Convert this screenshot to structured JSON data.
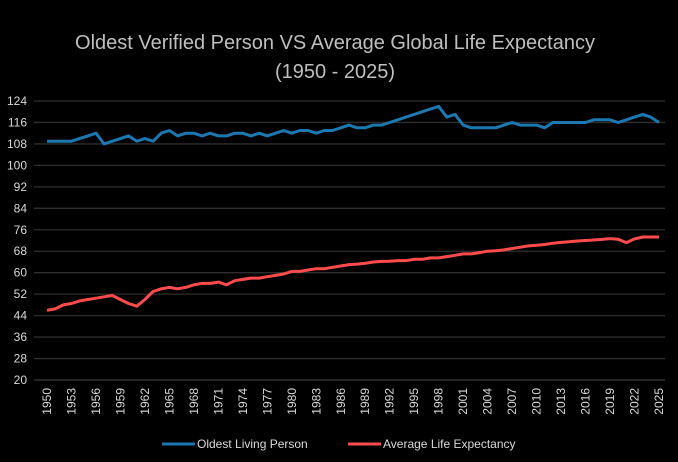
{
  "chart_data": {
    "type": "line",
    "title": "Oldest Verified Person VS Average Global Life Expectancy",
    "subtitle": "(1950 - 2025)",
    "xlabel": "",
    "ylabel": "",
    "ylim": [
      20,
      124
    ],
    "yticks": [
      20,
      28,
      36,
      44,
      52,
      60,
      68,
      76,
      84,
      92,
      100,
      108,
      116,
      124
    ],
    "xlim": [
      1950,
      2025
    ],
    "xticks": [
      1950,
      1953,
      1956,
      1959,
      1962,
      1965,
      1968,
      1971,
      1974,
      1977,
      1980,
      1983,
      1986,
      1989,
      1992,
      1995,
      1998,
      2001,
      2004,
      2007,
      2010,
      2013,
      2016,
      2019,
      2022,
      2025
    ],
    "grid": true,
    "legend_position": "bottom",
    "x": [
      1950,
      1951,
      1952,
      1953,
      1954,
      1955,
      1956,
      1957,
      1958,
      1959,
      1960,
      1961,
      1962,
      1963,
      1964,
      1965,
      1966,
      1967,
      1968,
      1969,
      1970,
      1971,
      1972,
      1973,
      1974,
      1975,
      1976,
      1977,
      1978,
      1979,
      1980,
      1981,
      1982,
      1983,
      1984,
      1985,
      1986,
      1987,
      1988,
      1989,
      1990,
      1991,
      1992,
      1993,
      1994,
      1995,
      1996,
      1997,
      1998,
      1999,
      2000,
      2001,
      2002,
      2003,
      2004,
      2005,
      2006,
      2007,
      2008,
      2009,
      2010,
      2011,
      2012,
      2013,
      2014,
      2015,
      2016,
      2017,
      2018,
      2019,
      2020,
      2021,
      2022,
      2023,
      2024,
      2025
    ],
    "series": [
      {
        "name": "Oldest Living Person",
        "color": "#1b78b0",
        "values": [
          109,
          109,
          109,
          109,
          110,
          111,
          112,
          108,
          109,
          110,
          111,
          109,
          110,
          109,
          112,
          113,
          111,
          112,
          112,
          111,
          112,
          111,
          111,
          112,
          112,
          111,
          112,
          111,
          112,
          113,
          112,
          113,
          113,
          112,
          113,
          113,
          114,
          115,
          114,
          114,
          115,
          115,
          116,
          117,
          118,
          119,
          120,
          121,
          122,
          118,
          119,
          115,
          114,
          114,
          114,
          114,
          115,
          116,
          115,
          115,
          115,
          114,
          116,
          116,
          116,
          116,
          116,
          117,
          117,
          117,
          116,
          117,
          118,
          119,
          118,
          116
        ]
      },
      {
        "name": "Average Life Expectancy",
        "color": "#ff4b4b",
        "values": [
          46,
          46.5,
          48,
          48.5,
          49.5,
          50,
          50.5,
          51,
          51.5,
          50,
          48.5,
          47.5,
          50,
          53,
          54,
          54.5,
          54,
          54.5,
          55.5,
          56,
          56,
          56.5,
          55.5,
          57,
          57.5,
          58,
          58,
          58.5,
          59,
          59.5,
          60.5,
          60.5,
          61,
          61.5,
          61.5,
          62,
          62.5,
          63,
          63.2,
          63.5,
          64,
          64.2,
          64.3,
          64.5,
          64.5,
          65,
          65,
          65.5,
          65.5,
          66,
          66.5,
          67,
          67,
          67.5,
          68,
          68.2,
          68.5,
          69,
          69.5,
          70,
          70.2,
          70.5,
          71,
          71.3,
          71.5,
          71.8,
          72,
          72.2,
          72.4,
          72.7,
          72.5,
          71.2,
          72.6,
          73.3,
          73.3,
          73.3
        ]
      }
    ]
  }
}
